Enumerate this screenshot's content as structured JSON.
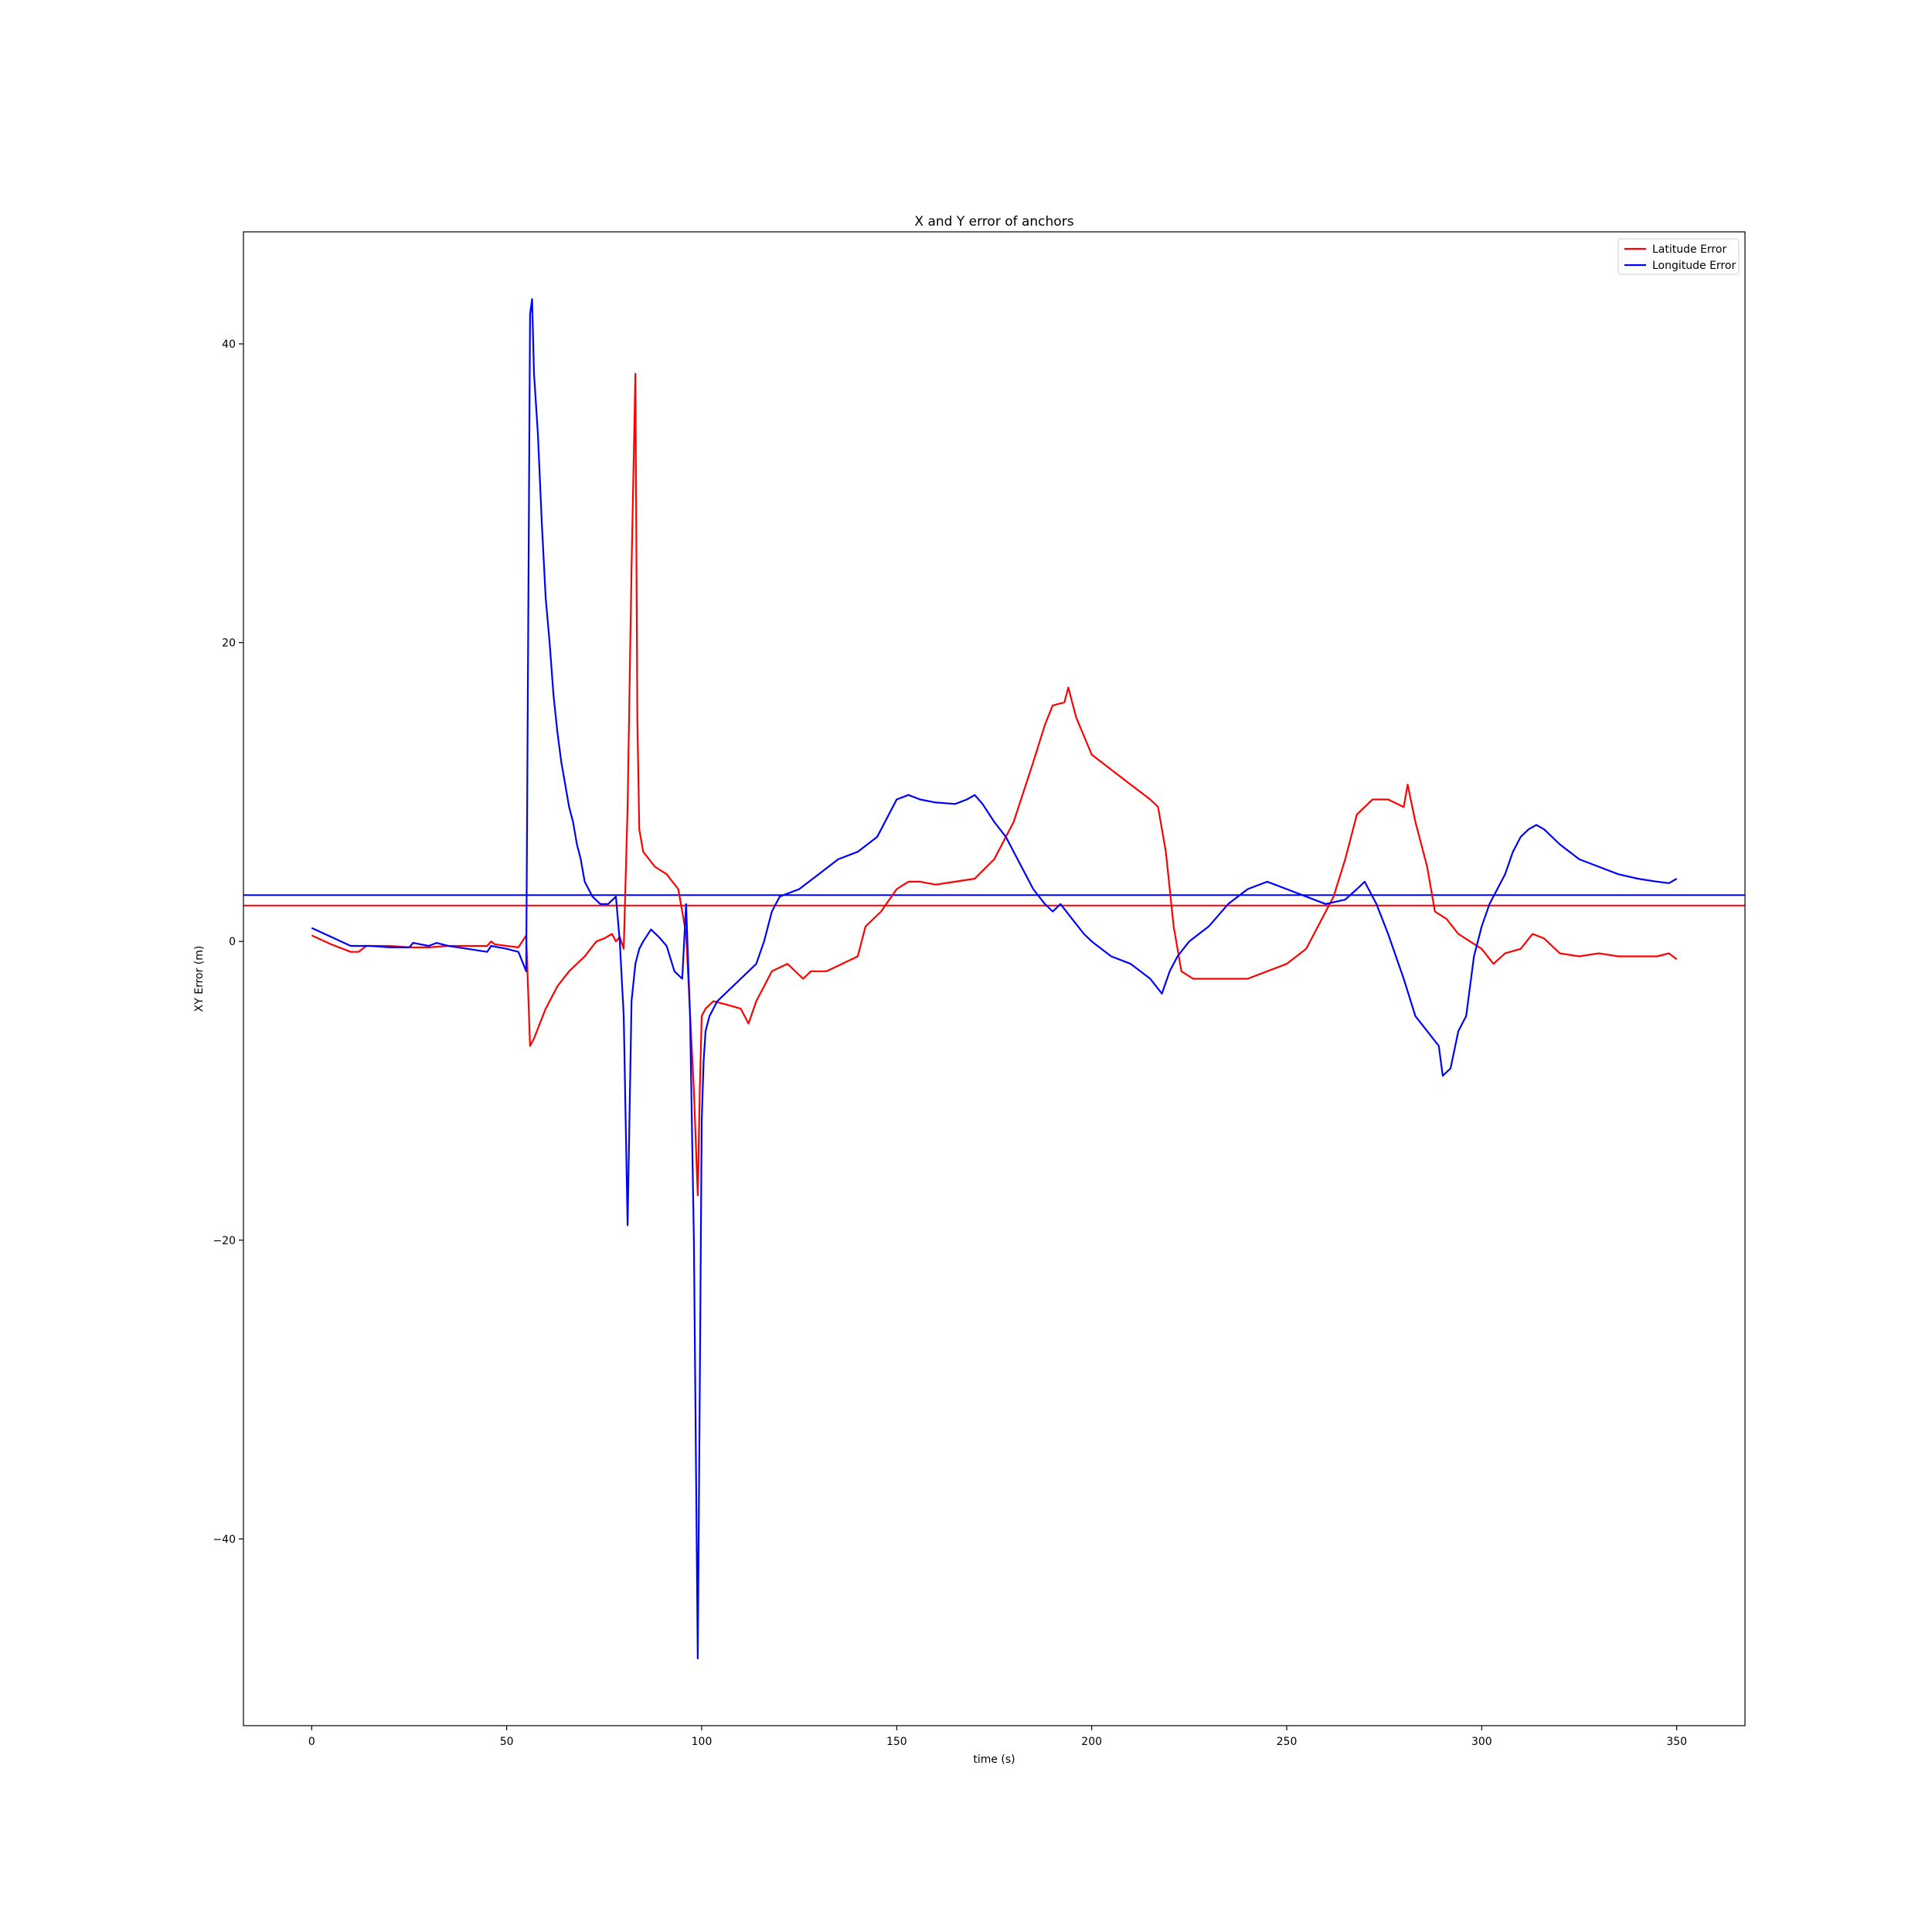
{
  "chart_data": {
    "type": "line",
    "title": "X and Y error of anchors",
    "xlabel": "time (s)",
    "ylabel": "XY Error (m)",
    "xlim": [
      -17.5,
      367.5
    ],
    "ylim": [
      -52.5,
      47.5
    ],
    "xticks": [
      0,
      50,
      100,
      150,
      200,
      250,
      300,
      350
    ],
    "yticks": [
      -40,
      -20,
      0,
      20,
      40
    ],
    "grid": false,
    "legend_position": "top-right",
    "series": [
      {
        "name": "Latitude Error",
        "color": "#ff0000",
        "x": [
          0,
          5,
          10,
          12,
          14,
          20,
          25,
          30,
          35,
          40,
          45,
          46,
          47,
          50,
          53,
          55,
          56,
          57,
          60,
          63,
          66,
          70,
          73,
          75,
          77,
          78,
          79,
          80,
          81,
          82,
          83,
          83.5,
          84,
          85,
          88,
          91,
          94,
          95,
          96,
          98,
          99,
          99.5,
          100,
          101,
          103,
          106,
          110,
          112,
          114,
          116,
          118,
          122,
          126,
          128,
          132,
          136,
          140,
          142,
          146,
          150,
          153,
          156,
          160,
          165,
          170,
          175,
          180,
          185,
          188,
          190,
          193,
          194,
          196,
          200,
          205,
          210,
          215,
          217,
          219,
          221,
          223,
          226,
          230,
          235,
          240,
          245,
          250,
          255,
          258,
          262,
          265,
          268,
          272,
          276,
          280,
          281,
          283,
          286,
          288,
          291,
          294,
          297,
          300,
          303,
          306,
          310,
          313,
          316,
          320,
          325,
          330,
          335,
          340,
          345,
          348,
          350
        ],
        "y": [
          0.4,
          -0.2,
          -0.7,
          -0.7,
          -0.3,
          -0.3,
          -0.4,
          -0.4,
          -0.3,
          -0.3,
          -0.3,
          0.0,
          -0.2,
          -0.3,
          -0.4,
          0.4,
          -7.0,
          -6.5,
          -4.5,
          -3.0,
          -2.0,
          -1.0,
          0.0,
          0.2,
          0.5,
          0.0,
          0.3,
          -0.5,
          9.0,
          25.0,
          38.0,
          15.0,
          7.5,
          6.0,
          5.0,
          4.5,
          3.5,
          2.0,
          0.5,
          -10.0,
          -17.0,
          -10.0,
          -5.0,
          -4.5,
          -4.0,
          -4.2,
          -4.5,
          -5.5,
          -4.0,
          -3.0,
          -2.0,
          -1.5,
          -2.5,
          -2.0,
          -2.0,
          -1.5,
          -1.0,
          1.0,
          2.0,
          3.5,
          4.0,
          4.0,
          3.8,
          4.0,
          4.2,
          5.5,
          8.0,
          12.0,
          14.5,
          15.8,
          16.0,
          17.0,
          15.0,
          12.5,
          11.5,
          10.5,
          9.5,
          9.0,
          6.0,
          1.0,
          -2.0,
          -2.5,
          -2.5,
          -2.5,
          -2.5,
          -2.0,
          -1.5,
          -0.5,
          1.0,
          3.0,
          5.5,
          8.5,
          9.5,
          9.5,
          9.0,
          10.5,
          8.0,
          5.0,
          2.0,
          1.5,
          0.5,
          0.0,
          -0.5,
          -1.5,
          -0.8,
          -0.5,
          0.5,
          0.2,
          -0.8,
          -1.0,
          -0.8,
          -1.0,
          -1.0,
          -1.0,
          -0.8,
          -1.2
        ]
      },
      {
        "name": "Longitude Error",
        "color": "#0000ff",
        "x": [
          0,
          5,
          10,
          15,
          20,
          25,
          26,
          30,
          32,
          35,
          40,
          45,
          46,
          50,
          53,
          55,
          56,
          56.5,
          57,
          58,
          59,
          60,
          61,
          62,
          63,
          64,
          65,
          66,
          67,
          68,
          69,
          70,
          72,
          74,
          76,
          78,
          79,
          80,
          80.5,
          81,
          82,
          83,
          84,
          85,
          87,
          89,
          91,
          93,
          95,
          96,
          97,
          98,
          99,
          99.5,
          100,
          100.5,
          101,
          102,
          104,
          106,
          108,
          110,
          112,
          114,
          116,
          118,
          120,
          125,
          130,
          135,
          140,
          145,
          148,
          150,
          153,
          156,
          160,
          165,
          168,
          170,
          172,
          175,
          178,
          180,
          182,
          185,
          188,
          190,
          192,
          195,
          198,
          200,
          205,
          210,
          215,
          218,
          220,
          222,
          225,
          230,
          235,
          240,
          245,
          250,
          255,
          260,
          265,
          268,
          270,
          273,
          276,
          280,
          283,
          286,
          289,
          290,
          292,
          294,
          296,
          298,
          300,
          302,
          304,
          306,
          308,
          310,
          312,
          314,
          316,
          320,
          325,
          330,
          335,
          340,
          345,
          348,
          350
        ],
        "y": [
          0.9,
          0.3,
          -0.3,
          -0.3,
          -0.4,
          -0.4,
          -0.1,
          -0.3,
          -0.1,
          -0.3,
          -0.5,
          -0.7,
          -0.3,
          -0.5,
          -0.7,
          -2.0,
          42.0,
          43.0,
          38.0,
          34.0,
          28.0,
          23.0,
          20.0,
          16.5,
          14.0,
          12.0,
          10.5,
          9.0,
          8.0,
          6.5,
          5.5,
          4.0,
          3.0,
          2.5,
          2.5,
          3.0,
          0.0,
          -5.0,
          -12.0,
          -19.0,
          -4.0,
          -1.5,
          -0.5,
          0.0,
          0.8,
          0.3,
          -0.3,
          -2.0,
          -2.5,
          2.5,
          -5.0,
          -20.0,
          -48.0,
          -30.0,
          -12.0,
          -8.0,
          -6.0,
          -5.0,
          -4.0,
          -3.5,
          -3.0,
          -2.5,
          -2.0,
          -1.5,
          0.0,
          2.0,
          3.0,
          3.5,
          4.5,
          5.5,
          6.0,
          7.0,
          8.5,
          9.5,
          9.8,
          9.5,
          9.3,
          9.2,
          9.5,
          9.8,
          9.2,
          8.0,
          7.0,
          6.0,
          5.0,
          3.5,
          2.5,
          2.0,
          2.5,
          1.5,
          0.5,
          0.0,
          -1.0,
          -1.5,
          -2.5,
          -3.5,
          -2.0,
          -1.0,
          0.0,
          1.0,
          2.5,
          3.5,
          4.0,
          3.5,
          3.0,
          2.5,
          2.8,
          3.5,
          4.0,
          2.5,
          0.5,
          -2.5,
          -5.0,
          -6.0,
          -7.0,
          -9.0,
          -8.5,
          -6.0,
          -5.0,
          -1.0,
          1.0,
          2.5,
          3.5,
          4.5,
          6.0,
          7.0,
          7.5,
          7.8,
          7.5,
          6.5,
          5.5,
          5.0,
          4.5,
          4.2,
          4.0,
          3.9,
          4.2
        ]
      }
    ],
    "reference_lines": [
      {
        "orientation": "horizontal",
        "y": 3.1,
        "color": "#0000ff"
      },
      {
        "orientation": "horizontal",
        "y": 2.4,
        "color": "#ff0000"
      }
    ]
  }
}
